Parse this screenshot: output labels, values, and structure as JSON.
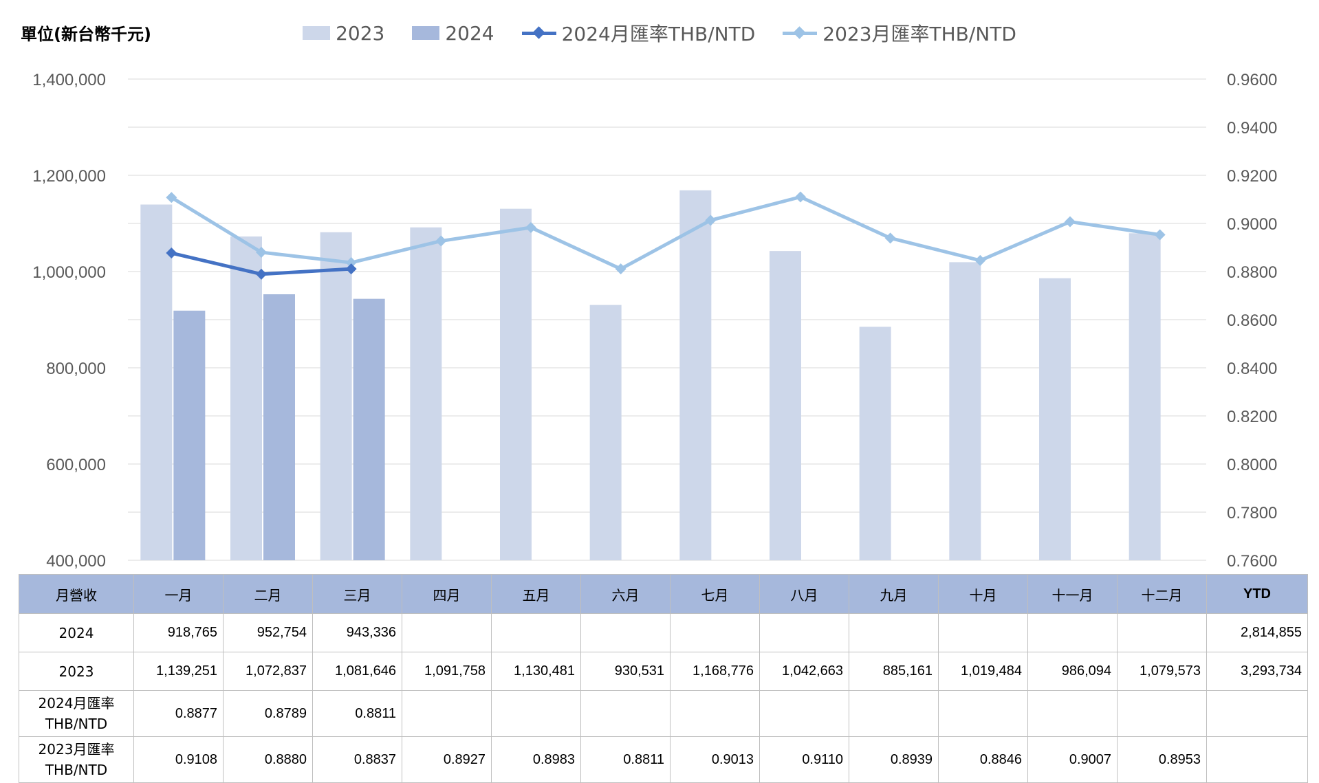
{
  "unit_label": "單位(新台幣千元)",
  "colors": {
    "bar2023": "#cdd7ea",
    "bar2024": "#a6b8dc",
    "line2024": "#4472c4",
    "line2023": "#9dc3e6",
    "grid": "#d9d9d9",
    "tick": "#595959"
  },
  "chart_data": {
    "type": "bar",
    "categories": [
      "一月",
      "二月",
      "三月",
      "四月",
      "五月",
      "六月",
      "七月",
      "八月",
      "九月",
      "十月",
      "十一月",
      "十二月"
    ],
    "series": [
      {
        "name": "2023",
        "kind": "bar",
        "axis": "left",
        "values": [
          1139251,
          1072837,
          1081646,
          1091758,
          1130481,
          930531,
          1168776,
          1042663,
          885161,
          1019484,
          986094,
          1079573
        ]
      },
      {
        "name": "2024",
        "kind": "bar",
        "axis": "left",
        "values": [
          918765,
          952754,
          943336,
          null,
          null,
          null,
          null,
          null,
          null,
          null,
          null,
          null
        ]
      },
      {
        "name": "2024月匯率THB/NTD",
        "kind": "line",
        "axis": "right",
        "values": [
          0.8877,
          0.8789,
          0.8811,
          null,
          null,
          null,
          null,
          null,
          null,
          null,
          null,
          null
        ]
      },
      {
        "name": "2023月匯率THB/NTD",
        "kind": "line",
        "axis": "right",
        "values": [
          0.9108,
          0.888,
          0.8837,
          0.8927,
          0.8983,
          0.8811,
          0.9013,
          0.911,
          0.8939,
          0.8846,
          0.9007,
          0.8953
        ]
      }
    ],
    "ylim": [
      400000,
      1400000
    ],
    "yticks": [
      "400,000",
      "600,000",
      "800,000",
      "1,000,000",
      "1,200,000",
      "1,400,000"
    ],
    "y2lim": [
      0.76,
      0.96
    ],
    "y2ticks": [
      "0.7600",
      "0.7800",
      "0.8000",
      "0.8200",
      "0.8400",
      "0.8600",
      "0.8800",
      "0.9000",
      "0.9200",
      "0.9400",
      "0.9600"
    ],
    "grid": true,
    "legend_position": "top"
  },
  "table": {
    "header": [
      "月營收",
      "一月",
      "二月",
      "三月",
      "四月",
      "五月",
      "六月",
      "七月",
      "八月",
      "九月",
      "十月",
      "十一月",
      "十二月",
      "YTD"
    ],
    "rows": [
      {
        "label": [
          "2024"
        ],
        "cells": [
          "918,765",
          "952,754",
          "943,336",
          "",
          "",
          "",
          "",
          "",
          "",
          "",
          "",
          "",
          "2,814,855"
        ]
      },
      {
        "label": [
          "2023"
        ],
        "cells": [
          "1,139,251",
          "1,072,837",
          "1,081,646",
          "1,091,758",
          "1,130,481",
          "930,531",
          "1,168,776",
          "1,042,663",
          "885,161",
          "1,019,484",
          "986,094",
          "1,079,573",
          "3,293,734"
        ]
      },
      {
        "label": [
          "2024月匯率",
          "THB/NTD"
        ],
        "cells": [
          "0.8877",
          "0.8789",
          "0.8811",
          "",
          "",
          "",
          "",
          "",
          "",
          "",
          "",
          "",
          ""
        ]
      },
      {
        "label": [
          "2023月匯率",
          "THB/NTD"
        ],
        "cells": [
          "0.9108",
          "0.8880",
          "0.8837",
          "0.8927",
          "0.8983",
          "0.8811",
          "0.9013",
          "0.9110",
          "0.8939",
          "0.8846",
          "0.9007",
          "0.8953",
          ""
        ]
      }
    ]
  }
}
